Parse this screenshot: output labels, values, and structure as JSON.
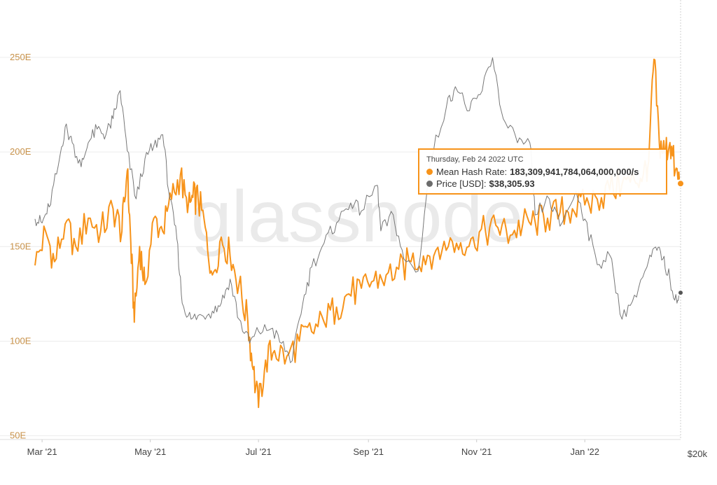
{
  "watermark": "glassnode",
  "colors": {
    "hash_rate": "#f7931a",
    "price": "#777777",
    "grid": "#ececec",
    "axis_label": "#c8924a"
  },
  "tooltip": {
    "date": "Thursday, Feb 24 2022 UTC",
    "hash_label": "Mean Hash Rate:",
    "hash_value": "183,309,941,784,064,000,000/s",
    "price_label": "Price [USD]:",
    "price_value": "$38,305.93"
  },
  "chart_data": {
    "type": "line",
    "x_start": "2021-02-25",
    "x_end": "2022-02-24",
    "x_ticks": [
      {
        "label": "Mar '21",
        "date": "2021-03-01"
      },
      {
        "label": "May '21",
        "date": "2021-05-01"
      },
      {
        "label": "Jul '21",
        "date": "2021-07-01"
      },
      {
        "label": "Sep '21",
        "date": "2021-09-01"
      },
      {
        "label": "Nov '21",
        "date": "2021-11-01"
      },
      {
        "label": "Jan '22",
        "date": "2022-01-01"
      }
    ],
    "y_left": {
      "ticks": [
        {
          "label": "250E",
          "value": 250
        },
        {
          "label": "200E",
          "value": 200
        },
        {
          "label": "150E",
          "value": 150
        },
        {
          "label": "100E",
          "value": 100
        },
        {
          "label": "50E",
          "value": 50
        }
      ],
      "range": [
        48,
        260
      ]
    },
    "y_right": {
      "ticks": [
        {
          "label": "$20k",
          "value": 20000
        }
      ],
      "range": [
        20000,
        70000
      ]
    },
    "series": [
      {
        "name": "Mean Hash Rate",
        "axis": "left",
        "color": "#f7931a",
        "points": [
          [
            "2021-02-25",
            140
          ],
          [
            "2021-03-03",
            158
          ],
          [
            "2021-03-08",
            142
          ],
          [
            "2021-03-14",
            162
          ],
          [
            "2021-03-20",
            150
          ],
          [
            "2021-03-27",
            165
          ],
          [
            "2021-04-03",
            158
          ],
          [
            "2021-04-10",
            170
          ],
          [
            "2021-04-15",
            158
          ],
          [
            "2021-04-18",
            190
          ],
          [
            "2021-04-20",
            152
          ],
          [
            "2021-04-22",
            110
          ],
          [
            "2021-04-25",
            150
          ],
          [
            "2021-04-28",
            130
          ],
          [
            "2021-05-03",
            165
          ],
          [
            "2021-05-08",
            158
          ],
          [
            "2021-05-13",
            175
          ],
          [
            "2021-05-18",
            188
          ],
          [
            "2021-05-22",
            168
          ],
          [
            "2021-05-25",
            176
          ],
          [
            "2021-05-28",
            175
          ],
          [
            "2021-06-01",
            160
          ],
          [
            "2021-06-05",
            135
          ],
          [
            "2021-06-10",
            155
          ],
          [
            "2021-06-15",
            145
          ],
          [
            "2021-06-20",
            130
          ],
          [
            "2021-06-25",
            110
          ],
          [
            "2021-06-28",
            85
          ],
          [
            "2021-07-01",
            65
          ],
          [
            "2021-07-05",
            90
          ],
          [
            "2021-07-10",
            95
          ],
          [
            "2021-07-17",
            92
          ],
          [
            "2021-07-24",
            100
          ],
          [
            "2021-07-31",
            105
          ],
          [
            "2021-08-07",
            110
          ],
          [
            "2021-08-14",
            118
          ],
          [
            "2021-08-21",
            125
          ],
          [
            "2021-08-28",
            128
          ],
          [
            "2021-09-04",
            132
          ],
          [
            "2021-09-11",
            135
          ],
          [
            "2021-09-18",
            138
          ],
          [
            "2021-09-25",
            142
          ],
          [
            "2021-10-02",
            145
          ],
          [
            "2021-10-09",
            148
          ],
          [
            "2021-10-16",
            150
          ],
          [
            "2021-10-23",
            152
          ],
          [
            "2021-10-30",
            155
          ],
          [
            "2021-11-06",
            158
          ],
          [
            "2021-11-13",
            160
          ],
          [
            "2021-11-20",
            156
          ],
          [
            "2021-11-27",
            162
          ],
          [
            "2021-12-04",
            163
          ],
          [
            "2021-12-11",
            165
          ],
          [
            "2021-12-18",
            168
          ],
          [
            "2021-12-25",
            170
          ],
          [
            "2022-01-01",
            172
          ],
          [
            "2022-01-08",
            175
          ],
          [
            "2022-01-15",
            180
          ],
          [
            "2022-01-22",
            183
          ],
          [
            "2022-01-29",
            185
          ],
          [
            "2022-02-03",
            188
          ],
          [
            "2022-02-06",
            195
          ],
          [
            "2022-02-09",
            249
          ],
          [
            "2022-02-12",
            205
          ],
          [
            "2022-02-15",
            200
          ],
          [
            "2022-02-18",
            205
          ],
          [
            "2022-02-21",
            190
          ],
          [
            "2022-02-24",
            183.3
          ]
        ]
      },
      {
        "name": "Price [USD]",
        "axis": "right",
        "color": "#777777",
        "points": [
          [
            "2021-02-25",
            47500
          ],
          [
            "2021-03-01",
            47000
          ],
          [
            "2021-03-05",
            49000
          ],
          [
            "2021-03-10",
            54000
          ],
          [
            "2021-03-14",
            59000
          ],
          [
            "2021-03-18",
            57000
          ],
          [
            "2021-03-23",
            54000
          ],
          [
            "2021-03-27",
            57000
          ],
          [
            "2021-04-01",
            58700
          ],
          [
            "2021-04-06",
            58000
          ],
          [
            "2021-04-10",
            60000
          ],
          [
            "2021-04-14",
            63500
          ],
          [
            "2021-04-18",
            56000
          ],
          [
            "2021-04-23",
            50000
          ],
          [
            "2021-04-28",
            55000
          ],
          [
            "2021-05-03",
            56600
          ],
          [
            "2021-05-08",
            58000
          ],
          [
            "2021-05-12",
            50000
          ],
          [
            "2021-05-16",
            45000
          ],
          [
            "2021-05-19",
            37000
          ],
          [
            "2021-05-24",
            35000
          ],
          [
            "2021-05-30",
            35500
          ],
          [
            "2021-06-05",
            36000
          ],
          [
            "2021-06-10",
            37000
          ],
          [
            "2021-06-15",
            40000
          ],
          [
            "2021-06-20",
            35000
          ],
          [
            "2021-06-26",
            32000
          ],
          [
            "2021-07-01",
            33500
          ],
          [
            "2021-07-08",
            33800
          ],
          [
            "2021-07-14",
            32000
          ],
          [
            "2021-07-20",
            29800
          ],
          [
            "2021-07-26",
            37000
          ],
          [
            "2021-07-31",
            41500
          ],
          [
            "2021-08-07",
            44500
          ],
          [
            "2021-08-14",
            47000
          ],
          [
            "2021-08-22",
            49500
          ],
          [
            "2021-08-28",
            48500
          ],
          [
            "2021-09-06",
            51700
          ],
          [
            "2021-09-08",
            46000
          ],
          [
            "2021-09-15",
            48000
          ],
          [
            "2021-09-21",
            42500
          ],
          [
            "2021-09-29",
            41000
          ],
          [
            "2021-10-06",
            55000
          ],
          [
            "2021-10-15",
            61500
          ],
          [
            "2021-10-20",
            64000
          ],
          [
            "2021-10-28",
            61000
          ],
          [
            "2021-11-03",
            63000
          ],
          [
            "2021-11-10",
            67600
          ],
          [
            "2021-11-16",
            60000
          ],
          [
            "2021-11-24",
            57000
          ],
          [
            "2021-12-01",
            57000
          ],
          [
            "2021-12-04",
            48000
          ],
          [
            "2021-12-12",
            50000
          ],
          [
            "2021-12-18",
            46600
          ],
          [
            "2021-12-27",
            51000
          ],
          [
            "2022-01-01",
            47500
          ],
          [
            "2022-01-08",
            41800
          ],
          [
            "2022-01-15",
            43000
          ],
          [
            "2022-01-22",
            35000
          ],
          [
            "2022-01-29",
            38000
          ],
          [
            "2022-02-05",
            41500
          ],
          [
            "2022-02-10",
            44000
          ],
          [
            "2022-02-14",
            42500
          ],
          [
            "2022-02-18",
            40000
          ],
          [
            "2022-02-22",
            37000
          ],
          [
            "2022-02-24",
            38305.93
          ]
        ]
      }
    ]
  }
}
